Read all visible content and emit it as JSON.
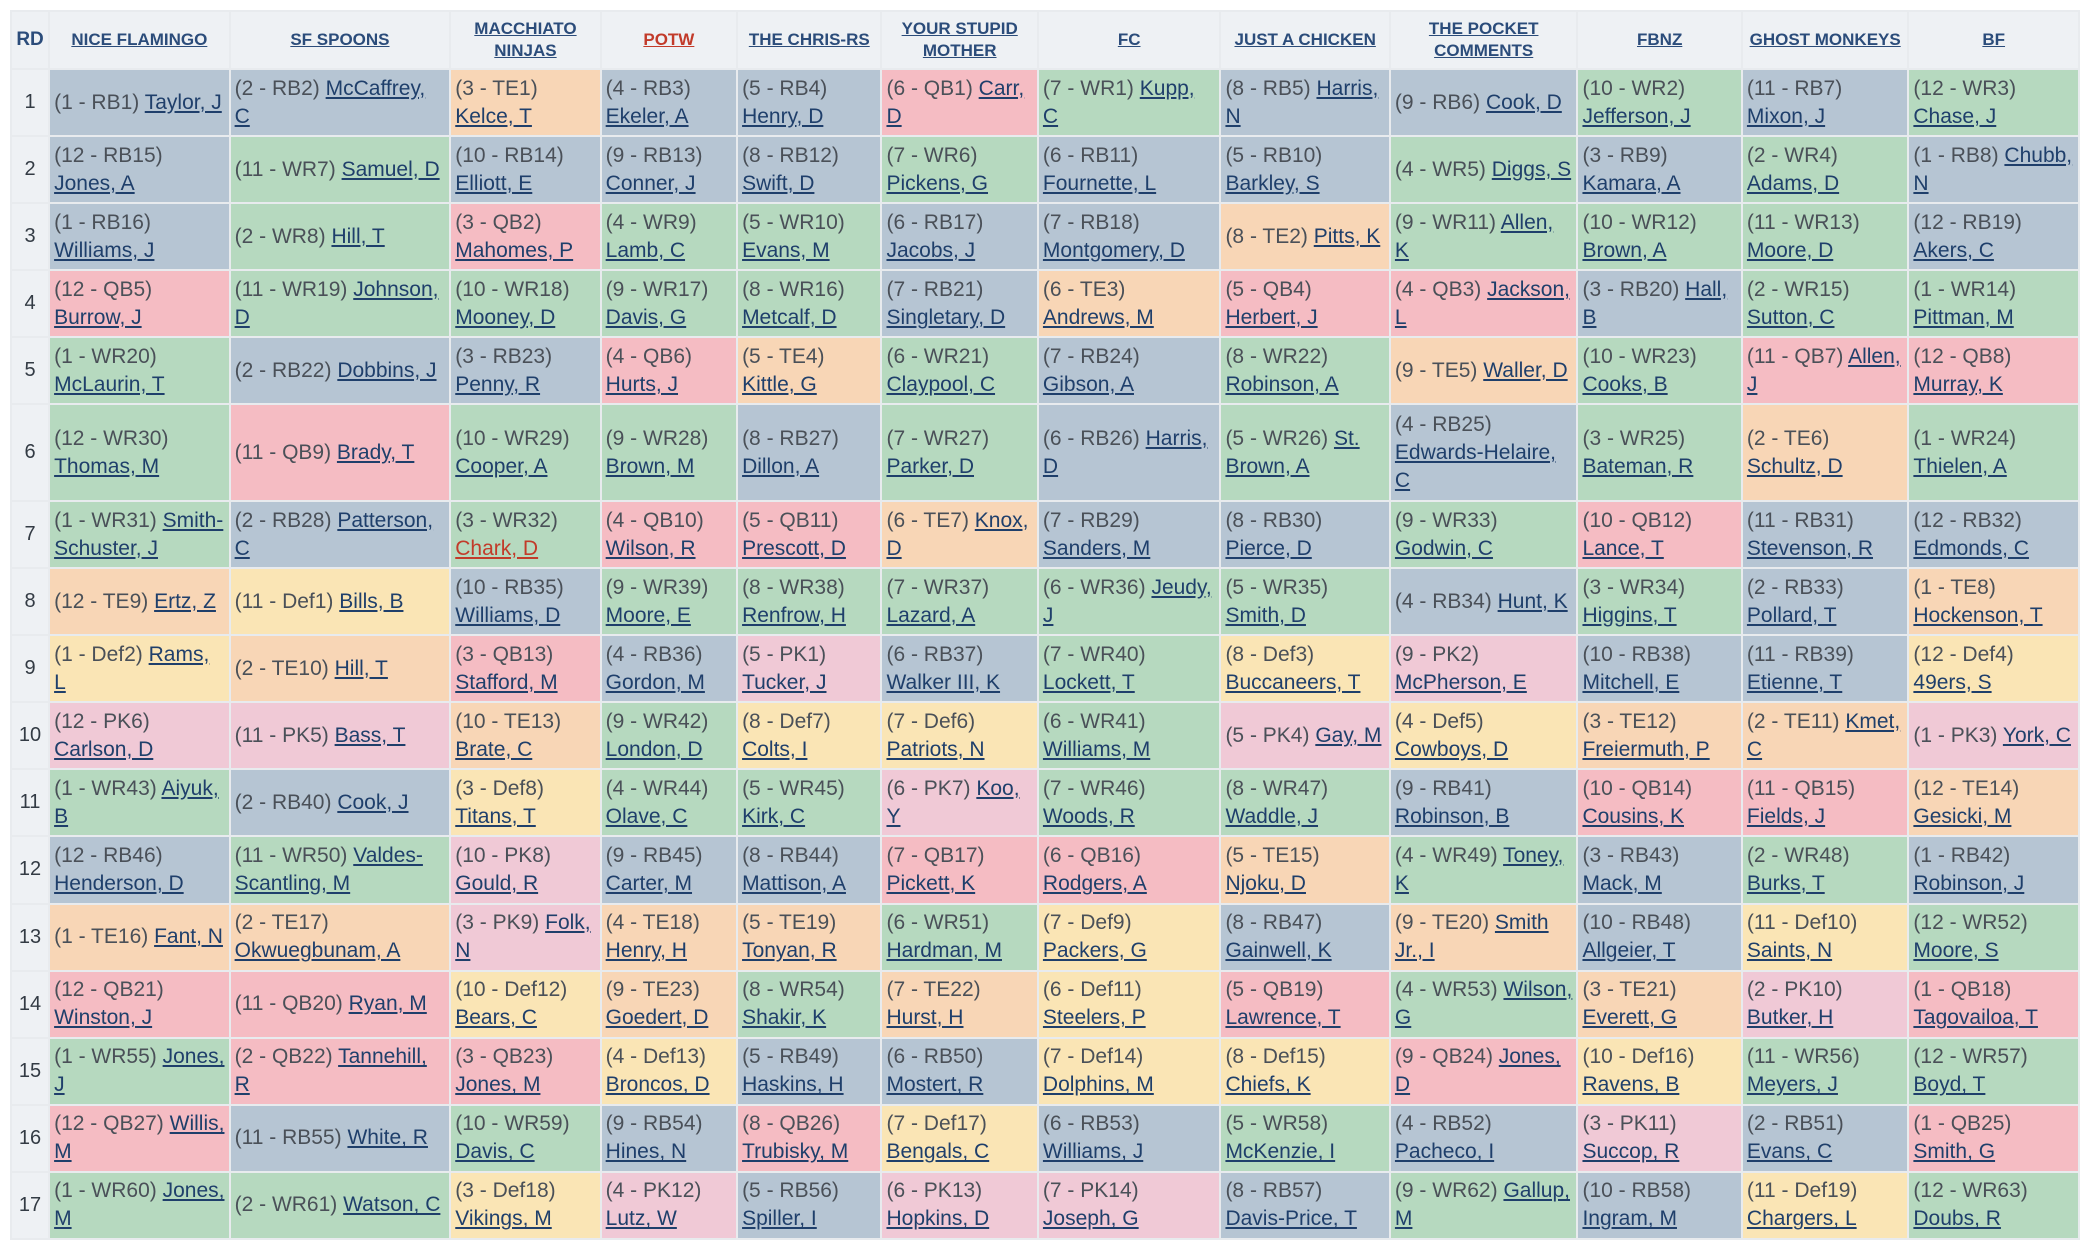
{
  "header": {
    "round_label": "RD",
    "teams": [
      "NICE FLAMINGO",
      "SF SPOONS",
      "MACCHIATO NINJAS",
      "POTW",
      "THE CHRIS-RS",
      "YOUR STUPID MOTHER",
      "FC",
      "JUST A CHICKEN",
      "THE POCKET COMMENTS",
      "FBNZ",
      "GHOST MONKEYS",
      "BF"
    ],
    "highlighted_team": "POTW"
  },
  "position_colors": {
    "RB": "#b6c5d3",
    "WR": "#b6d9bf",
    "QB": "#f5bcc3",
    "TE": "#f8d6b6",
    "Def": "#fae5b5",
    "PK": "#f0c9d6"
  },
  "rounds": [
    {
      "rd": "1",
      "picks": [
        {
          "slot": "(1 - RB1)",
          "player": "Taylor, J"
        },
        {
          "slot": "(2 - RB2)",
          "player": "McCaffrey, C"
        },
        {
          "slot": "(3 - TE1)",
          "player": "Kelce, T"
        },
        {
          "slot": "(4 - RB3)",
          "player": "Ekeler, A"
        },
        {
          "slot": "(5 - RB4)",
          "player": "Henry, D"
        },
        {
          "slot": "(6 - QB1)",
          "player": "Carr, D"
        },
        {
          "slot": "(7 - WR1)",
          "player": "Kupp, C"
        },
        {
          "slot": "(8 - RB5)",
          "player": "Harris, N"
        },
        {
          "slot": "(9 - RB6)",
          "player": "Cook, D"
        },
        {
          "slot": "(10 - WR2)",
          "player": "Jefferson, J"
        },
        {
          "slot": "(11 - RB7)",
          "player": "Mixon, J"
        },
        {
          "slot": "(12 - WR3)",
          "player": "Chase, J"
        }
      ]
    },
    {
      "rd": "2",
      "picks": [
        {
          "slot": "(12 - RB15)",
          "player": "Jones, A"
        },
        {
          "slot": "(11 - WR7)",
          "player": "Samuel, D"
        },
        {
          "slot": "(10 - RB14)",
          "player": "Elliott, E"
        },
        {
          "slot": "(9 - RB13)",
          "player": "Conner, J"
        },
        {
          "slot": "(8 - RB12)",
          "player": "Swift, D"
        },
        {
          "slot": "(7 - WR6)",
          "player": "Pickens, G"
        },
        {
          "slot": "(6 - RB11)",
          "player": "Fournette, L"
        },
        {
          "slot": "(5 - RB10)",
          "player": "Barkley, S"
        },
        {
          "slot": "(4 - WR5)",
          "player": "Diggs, S"
        },
        {
          "slot": "(3 - RB9)",
          "player": "Kamara, A"
        },
        {
          "slot": "(2 - WR4)",
          "player": "Adams, D"
        },
        {
          "slot": "(1 - RB8)",
          "player": "Chubb, N"
        }
      ]
    },
    {
      "rd": "3",
      "picks": [
        {
          "slot": "(1 - RB16)",
          "player": "Williams, J"
        },
        {
          "slot": "(2 - WR8)",
          "player": "Hill, T"
        },
        {
          "slot": "(3 - QB2)",
          "player": "Mahomes, P"
        },
        {
          "slot": "(4 - WR9)",
          "player": "Lamb, C"
        },
        {
          "slot": "(5 - WR10)",
          "player": "Evans, M"
        },
        {
          "slot": "(6 - RB17)",
          "player": "Jacobs, J"
        },
        {
          "slot": "(7 - RB18)",
          "player": "Montgomery, D"
        },
        {
          "slot": "(8 - TE2)",
          "player": "Pitts, K"
        },
        {
          "slot": "(9 - WR11)",
          "player": "Allen, K"
        },
        {
          "slot": "(10 - WR12)",
          "player": "Brown, A"
        },
        {
          "slot": "(11 - WR13)",
          "player": "Moore, D"
        },
        {
          "slot": "(12 - RB19)",
          "player": "Akers, C"
        }
      ]
    },
    {
      "rd": "4",
      "picks": [
        {
          "slot": "(12 - QB5)",
          "player": "Burrow, J"
        },
        {
          "slot": "(11 - WR19)",
          "player": "Johnson, D"
        },
        {
          "slot": "(10 - WR18)",
          "player": "Mooney, D"
        },
        {
          "slot": "(9 - WR17)",
          "player": "Davis, G"
        },
        {
          "slot": "(8 - WR16)",
          "player": "Metcalf, D"
        },
        {
          "slot": "(7 - RB21)",
          "player": "Singletary, D"
        },
        {
          "slot": "(6 - TE3)",
          "player": "Andrews, M"
        },
        {
          "slot": "(5 - QB4)",
          "player": "Herbert, J"
        },
        {
          "slot": "(4 - QB3)",
          "player": "Jackson, L"
        },
        {
          "slot": "(3 - RB20)",
          "player": "Hall, B"
        },
        {
          "slot": "(2 - WR15)",
          "player": "Sutton, C"
        },
        {
          "slot": "(1 - WR14)",
          "player": "Pittman, M"
        }
      ]
    },
    {
      "rd": "5",
      "picks": [
        {
          "slot": "(1 - WR20)",
          "player": "McLaurin, T"
        },
        {
          "slot": "(2 - RB22)",
          "player": "Dobbins, J"
        },
        {
          "slot": "(3 - RB23)",
          "player": "Penny, R"
        },
        {
          "slot": "(4 - QB6)",
          "player": "Hurts, J"
        },
        {
          "slot": "(5 - TE4)",
          "player": "Kittle, G"
        },
        {
          "slot": "(6 - WR21)",
          "player": "Claypool, C"
        },
        {
          "slot": "(7 - RB24)",
          "player": "Gibson, A"
        },
        {
          "slot": "(8 - WR22)",
          "player": "Robinson, A"
        },
        {
          "slot": "(9 - TE5)",
          "player": "Waller, D"
        },
        {
          "slot": "(10 - WR23)",
          "player": "Cooks, B"
        },
        {
          "slot": "(11 - QB7)",
          "player": "Allen, J"
        },
        {
          "slot": "(12 - QB8)",
          "player": "Murray, K"
        }
      ]
    },
    {
      "rd": "6",
      "picks": [
        {
          "slot": "(12 - WR30)",
          "player": "Thomas, M"
        },
        {
          "slot": "(11 - QB9)",
          "player": "Brady, T"
        },
        {
          "slot": "(10 - WR29)",
          "player": "Cooper, A"
        },
        {
          "slot": "(9 - WR28)",
          "player": "Brown, M"
        },
        {
          "slot": "(8 - RB27)",
          "player": "Dillon, A"
        },
        {
          "slot": "(7 - WR27)",
          "player": "Parker, D"
        },
        {
          "slot": "(6 - RB26)",
          "player": "Harris, D"
        },
        {
          "slot": "(5 - WR26)",
          "player": "St. Brown, A"
        },
        {
          "slot": "(4 - RB25)",
          "player": "Edwards-Helaire, C"
        },
        {
          "slot": "(3 - WR25)",
          "player": "Bateman, R"
        },
        {
          "slot": "(2 - TE6)",
          "player": "Schultz, D"
        },
        {
          "slot": "(1 - WR24)",
          "player": "Thielen, A"
        }
      ]
    },
    {
      "rd": "7",
      "picks": [
        {
          "slot": "(1 - WR31)",
          "player": "Smith-Schuster, J"
        },
        {
          "slot": "(2 - RB28)",
          "player": "Patterson, C"
        },
        {
          "slot": "(3 - WR32)",
          "player": "Chark, D",
          "kept": true
        },
        {
          "slot": "(4 - QB10)",
          "player": "Wilson, R"
        },
        {
          "slot": "(5 - QB11)",
          "player": "Prescott, D"
        },
        {
          "slot": "(6 - TE7)",
          "player": "Knox, D"
        },
        {
          "slot": "(7 - RB29)",
          "player": "Sanders, M"
        },
        {
          "slot": "(8 - RB30)",
          "player": "Pierce, D"
        },
        {
          "slot": "(9 - WR33)",
          "player": "Godwin, C"
        },
        {
          "slot": "(10 - QB12)",
          "player": "Lance, T"
        },
        {
          "slot": "(11 - RB31)",
          "player": "Stevenson, R"
        },
        {
          "slot": "(12 - RB32)",
          "player": "Edmonds, C"
        }
      ]
    },
    {
      "rd": "8",
      "picks": [
        {
          "slot": "(12 - TE9)",
          "player": "Ertz, Z"
        },
        {
          "slot": "(11 - Def1)",
          "player": "Bills, B"
        },
        {
          "slot": "(10 - RB35)",
          "player": "Williams, D"
        },
        {
          "slot": "(9 - WR39)",
          "player": "Moore, E"
        },
        {
          "slot": "(8 - WR38)",
          "player": "Renfrow, H"
        },
        {
          "slot": "(7 - WR37)",
          "player": "Lazard, A"
        },
        {
          "slot": "(6 - WR36)",
          "player": "Jeudy, J"
        },
        {
          "slot": "(5 - WR35)",
          "player": "Smith, D"
        },
        {
          "slot": "(4 - RB34)",
          "player": "Hunt, K"
        },
        {
          "slot": "(3 - WR34)",
          "player": "Higgins, T"
        },
        {
          "slot": "(2 - RB33)",
          "player": "Pollard, T"
        },
        {
          "slot": "(1 - TE8)",
          "player": "Hockenson, T"
        }
      ]
    },
    {
      "rd": "9",
      "picks": [
        {
          "slot": "(1 - Def2)",
          "player": "Rams, L"
        },
        {
          "slot": "(2 - TE10)",
          "player": "Hill, T"
        },
        {
          "slot": "(3 - QB13)",
          "player": "Stafford, M"
        },
        {
          "slot": "(4 - RB36)",
          "player": "Gordon, M"
        },
        {
          "slot": "(5 - PK1)",
          "player": "Tucker, J"
        },
        {
          "slot": "(6 - RB37)",
          "player": "Walker III, K"
        },
        {
          "slot": "(7 - WR40)",
          "player": "Lockett, T"
        },
        {
          "slot": "(8 - Def3)",
          "player": "Buccaneers, T"
        },
        {
          "slot": "(9 - PK2)",
          "player": "McPherson, E"
        },
        {
          "slot": "(10 - RB38)",
          "player": "Mitchell, E"
        },
        {
          "slot": "(11 - RB39)",
          "player": "Etienne, T"
        },
        {
          "slot": "(12 - Def4)",
          "player": "49ers, S"
        }
      ]
    },
    {
      "rd": "10",
      "picks": [
        {
          "slot": "(12 - PK6)",
          "player": "Carlson, D"
        },
        {
          "slot": "(11 - PK5)",
          "player": "Bass, T"
        },
        {
          "slot": "(10 - TE13)",
          "player": "Brate, C"
        },
        {
          "slot": "(9 - WR42)",
          "player": "London, D"
        },
        {
          "slot": "(8 - Def7)",
          "player": "Colts, I"
        },
        {
          "slot": "(7 - Def6)",
          "player": "Patriots, N"
        },
        {
          "slot": "(6 - WR41)",
          "player": "Williams, M"
        },
        {
          "slot": "(5 - PK4)",
          "player": "Gay, M"
        },
        {
          "slot": "(4 - Def5)",
          "player": "Cowboys, D"
        },
        {
          "slot": "(3 - TE12)",
          "player": "Freiermuth, P"
        },
        {
          "slot": "(2 - TE11)",
          "player": "Kmet, C"
        },
        {
          "slot": "(1 - PK3)",
          "player": "York, C"
        }
      ]
    },
    {
      "rd": "11",
      "picks": [
        {
          "slot": "(1 - WR43)",
          "player": "Aiyuk, B"
        },
        {
          "slot": "(2 - RB40)",
          "player": "Cook, J"
        },
        {
          "slot": "(3 - Def8)",
          "player": "Titans, T"
        },
        {
          "slot": "(4 - WR44)",
          "player": "Olave, C"
        },
        {
          "slot": "(5 - WR45)",
          "player": "Kirk, C"
        },
        {
          "slot": "(6 - PK7)",
          "player": "Koo, Y"
        },
        {
          "slot": "(7 - WR46)",
          "player": "Woods, R"
        },
        {
          "slot": "(8 - WR47)",
          "player": "Waddle, J"
        },
        {
          "slot": "(9 - RB41)",
          "player": "Robinson, B"
        },
        {
          "slot": "(10 - QB14)",
          "player": "Cousins, K"
        },
        {
          "slot": "(11 - QB15)",
          "player": "Fields, J"
        },
        {
          "slot": "(12 - TE14)",
          "player": "Gesicki, M"
        }
      ]
    },
    {
      "rd": "12",
      "picks": [
        {
          "slot": "(12 - RB46)",
          "player": "Henderson, D"
        },
        {
          "slot": "(11 - WR50)",
          "player": "Valdes-Scantling, M"
        },
        {
          "slot": "(10 - PK8)",
          "player": "Gould, R"
        },
        {
          "slot": "(9 - RB45)",
          "player": "Carter, M"
        },
        {
          "slot": "(8 - RB44)",
          "player": "Mattison, A"
        },
        {
          "slot": "(7 - QB17)",
          "player": "Pickett, K"
        },
        {
          "slot": "(6 - QB16)",
          "player": "Rodgers, A"
        },
        {
          "slot": "(5 - TE15)",
          "player": "Njoku, D"
        },
        {
          "slot": "(4 - WR49)",
          "player": "Toney, K"
        },
        {
          "slot": "(3 - RB43)",
          "player": "Mack, M"
        },
        {
          "slot": "(2 - WR48)",
          "player": "Burks, T"
        },
        {
          "slot": "(1 - RB42)",
          "player": "Robinson, J"
        }
      ]
    },
    {
      "rd": "13",
      "picks": [
        {
          "slot": "(1 - TE16)",
          "player": "Fant, N"
        },
        {
          "slot": "(2 - TE17)",
          "player": "Okwuegbunam, A"
        },
        {
          "slot": "(3 - PK9)",
          "player": "Folk, N"
        },
        {
          "slot": "(4 - TE18)",
          "player": "Henry, H"
        },
        {
          "slot": "(5 - TE19)",
          "player": "Tonyan, R"
        },
        {
          "slot": "(6 - WR51)",
          "player": "Hardman, M"
        },
        {
          "slot": "(7 - Def9)",
          "player": "Packers, G"
        },
        {
          "slot": "(8 - RB47)",
          "player": "Gainwell, K"
        },
        {
          "slot": "(9 - TE20)",
          "player": "Smith Jr., I"
        },
        {
          "slot": "(10 - RB48)",
          "player": "Allgeier, T"
        },
        {
          "slot": "(11 - Def10)",
          "player": "Saints, N"
        },
        {
          "slot": "(12 - WR52)",
          "player": "Moore, S"
        }
      ]
    },
    {
      "rd": "14",
      "picks": [
        {
          "slot": "(12 - QB21)",
          "player": "Winston, J"
        },
        {
          "slot": "(11 - QB20)",
          "player": "Ryan, M"
        },
        {
          "slot": "(10 - Def12)",
          "player": "Bears, C"
        },
        {
          "slot": "(9 - TE23)",
          "player": "Goedert, D"
        },
        {
          "slot": "(8 - WR54)",
          "player": "Shakir, K"
        },
        {
          "slot": "(7 - TE22)",
          "player": "Hurst, H"
        },
        {
          "slot": "(6 - Def11)",
          "player": "Steelers, P"
        },
        {
          "slot": "(5 - QB19)",
          "player": "Lawrence, T"
        },
        {
          "slot": "(4 - WR53)",
          "player": "Wilson, G"
        },
        {
          "slot": "(3 - TE21)",
          "player": "Everett, G"
        },
        {
          "slot": "(2 - PK10)",
          "player": "Butker, H"
        },
        {
          "slot": "(1 - QB18)",
          "player": "Tagovailoa, T"
        }
      ]
    },
    {
      "rd": "15",
      "picks": [
        {
          "slot": "(1 - WR55)",
          "player": "Jones, J"
        },
        {
          "slot": "(2 - QB22)",
          "player": "Tannehill, R"
        },
        {
          "slot": "(3 - QB23)",
          "player": "Jones, M"
        },
        {
          "slot": "(4 - Def13)",
          "player": "Broncos, D"
        },
        {
          "slot": "(5 - RB49)",
          "player": "Haskins, H"
        },
        {
          "slot": "(6 - RB50)",
          "player": "Mostert, R"
        },
        {
          "slot": "(7 - Def14)",
          "player": "Dolphins, M"
        },
        {
          "slot": "(8 - Def15)",
          "player": "Chiefs, K"
        },
        {
          "slot": "(9 - QB24)",
          "player": "Jones, D"
        },
        {
          "slot": "(10 - Def16)",
          "player": "Ravens, B"
        },
        {
          "slot": "(11 - WR56)",
          "player": "Meyers, J"
        },
        {
          "slot": "(12 - WR57)",
          "player": "Boyd, T"
        }
      ]
    },
    {
      "rd": "16",
      "picks": [
        {
          "slot": "(12 - QB27)",
          "player": "Willis, M"
        },
        {
          "slot": "(11 - RB55)",
          "player": "White, R"
        },
        {
          "slot": "(10 - WR59)",
          "player": "Davis, C"
        },
        {
          "slot": "(9 - RB54)",
          "player": "Hines, N"
        },
        {
          "slot": "(8 - QB26)",
          "player": "Trubisky, M"
        },
        {
          "slot": "(7 - Def17)",
          "player": "Bengals, C"
        },
        {
          "slot": "(6 - RB53)",
          "player": "Williams, J"
        },
        {
          "slot": "(5 - WR58)",
          "player": "McKenzie, I"
        },
        {
          "slot": "(4 - RB52)",
          "player": "Pacheco, I"
        },
        {
          "slot": "(3 - PK11)",
          "player": "Succop, R"
        },
        {
          "slot": "(2 - RB51)",
          "player": "Evans, C"
        },
        {
          "slot": "(1 - QB25)",
          "player": "Smith, G"
        }
      ]
    },
    {
      "rd": "17",
      "picks": [
        {
          "slot": "(1 - WR60)",
          "player": "Jones, M"
        },
        {
          "slot": "(2 - WR61)",
          "player": "Watson, C"
        },
        {
          "slot": "(3 - Def18)",
          "player": "Vikings, M"
        },
        {
          "slot": "(4 - PK12)",
          "player": "Lutz, W"
        },
        {
          "slot": "(5 - RB56)",
          "player": "Spiller, I"
        },
        {
          "slot": "(6 - PK13)",
          "player": "Hopkins, D"
        },
        {
          "slot": "(7 - PK14)",
          "player": "Joseph, G"
        },
        {
          "slot": "(8 - RB57)",
          "player": "Davis-Price, T"
        },
        {
          "slot": "(9 - WR62)",
          "player": "Gallup, M"
        },
        {
          "slot": "(10 - RB58)",
          "player": "Ingram, M"
        },
        {
          "slot": "(11 - Def19)",
          "player": "Chargers, L"
        },
        {
          "slot": "(12 - WR63)",
          "player": "Doubs, R"
        }
      ]
    }
  ]
}
